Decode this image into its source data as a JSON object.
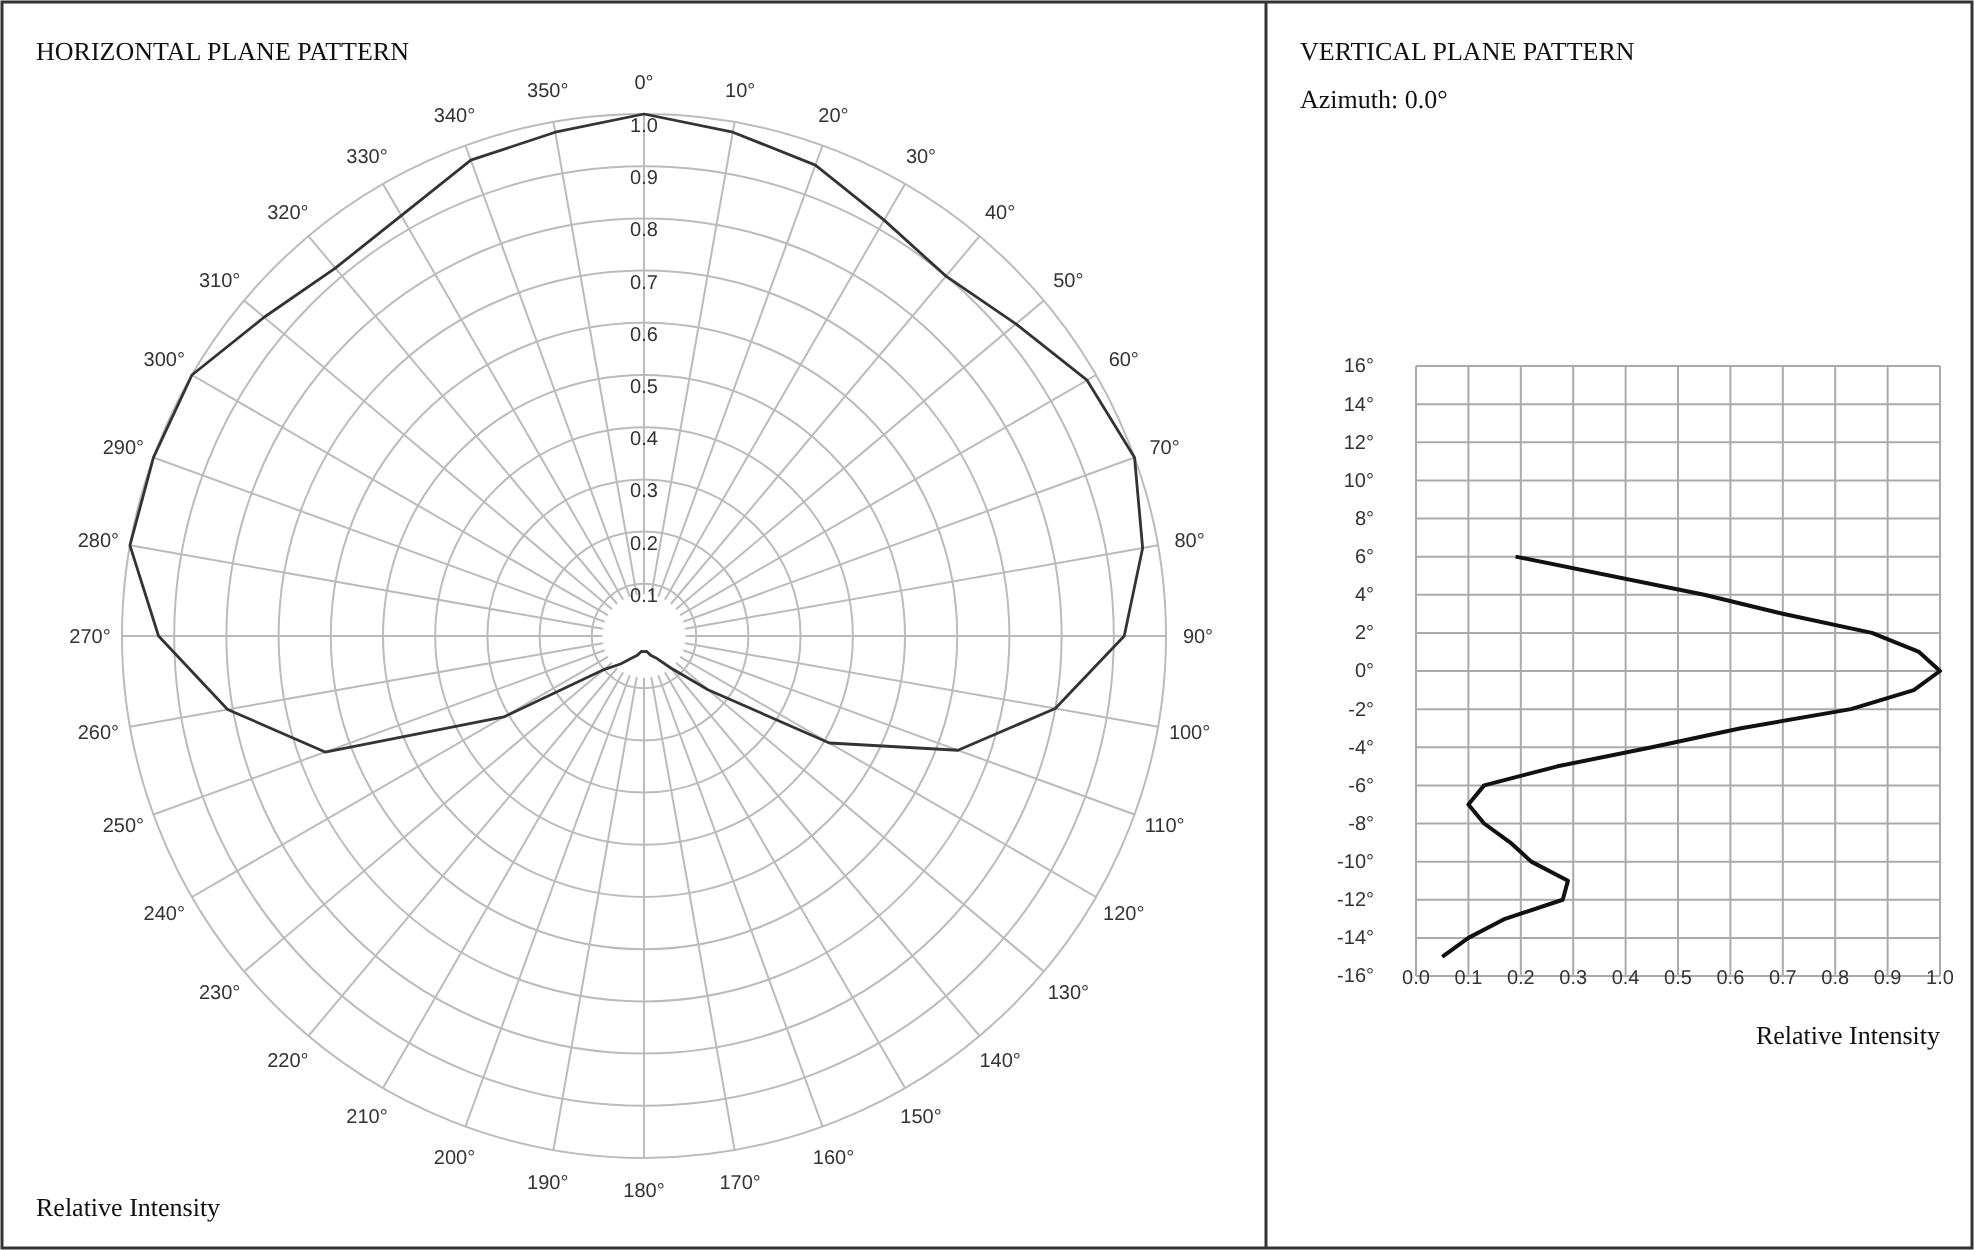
{
  "chart_data": [
    {
      "type": "radar",
      "title": "HORIZONTAL PLANE PATTERN",
      "annotations": [
        "Relative Intensity"
      ],
      "categories": [
        "0°",
        "10°",
        "20°",
        "30°",
        "40°",
        "50°",
        "60°",
        "70°",
        "80°",
        "90°",
        "100°",
        "110°",
        "120°",
        "130°",
        "140°",
        "150°",
        "160°",
        "170°",
        "180°",
        "190°",
        "200°",
        "210°",
        "220°",
        "230°",
        "240°",
        "250°",
        "260°",
        "270°",
        "280°",
        "290°",
        "300°",
        "310°",
        "320°",
        "330°",
        "340°",
        "350°"
      ],
      "series": [
        {
          "color": "#333333",
          "values": [
            1.0,
            0.98,
            0.96,
            0.92,
            0.9,
            0.93,
            0.98,
            1.0,
            0.97,
            0.92,
            0.8,
            0.64,
            0.41,
            0.16,
            0.08,
            0.05,
            0.04,
            0.03,
            0.03,
            0.03,
            0.04,
            0.05,
            0.07,
            0.1,
            0.31,
            0.65,
            0.81,
            0.93,
            1.0,
            1.0,
            1.0,
            0.95,
            0.92,
            0.93,
            0.97,
            0.98
          ]
        }
      ],
      "ylim": [
        0,
        1
      ],
      "yticks": [
        {
          "value": 0.1,
          "label": "0.1"
        },
        {
          "value": 0.2,
          "label": "0.2"
        },
        {
          "value": 0.3,
          "label": "0.3"
        },
        {
          "value": 0.4,
          "label": "0.4"
        },
        {
          "value": 0.5,
          "label": "0.5"
        },
        {
          "value": 0.6,
          "label": "0.6"
        },
        {
          "value": 0.7,
          "label": "0.7"
        },
        {
          "value": 0.8,
          "label": "0.8"
        },
        {
          "value": 0.9,
          "label": "0.9"
        },
        {
          "value": 1.0,
          "label": "1.0"
        }
      ],
      "grid": true
    },
    {
      "type": "line",
      "title": "VERTICAL PLANE PATTERN",
      "subtitle": "Azimuth: 0.0°",
      "xlabel": "Relative Intensity",
      "series": [
        {
          "color": "#111111",
          "x": [
            0.19,
            0.55,
            0.7,
            0.87,
            0.96,
            1.0,
            0.95,
            0.83,
            0.62,
            0.45,
            0.27,
            0.13,
            0.1,
            0.13,
            0.18,
            0.22,
            0.29,
            0.28,
            0.17,
            0.1,
            0.05
          ],
          "values": [
            6,
            4,
            3,
            2,
            1,
            0,
            -1,
            -2,
            -3,
            -4,
            -5,
            -6,
            -7,
            -8,
            -9,
            -10,
            -11,
            -12,
            -13,
            -14,
            -15
          ]
        }
      ],
      "xlim": [
        0,
        1
      ],
      "xticks": [
        {
          "value": 0,
          "label": "0.0"
        },
        {
          "value": 0.1,
          "label": "0.1"
        },
        {
          "value": 0.2,
          "label": "0.2"
        },
        {
          "value": 0.3,
          "label": "0.3"
        },
        {
          "value": 0.4,
          "label": "0.4"
        },
        {
          "value": 0.5,
          "label": "0.5"
        },
        {
          "value": 0.6,
          "label": "0.6"
        },
        {
          "value": 0.7,
          "label": "0.7"
        },
        {
          "value": 0.8,
          "label": "0.8"
        },
        {
          "value": 0.9,
          "label": "0.9"
        },
        {
          "value": 1,
          "label": "1.0"
        }
      ],
      "ylim": [
        -16,
        16
      ],
      "yticks": [
        {
          "value": -16,
          "label": "-16°"
        },
        {
          "value": -14,
          "label": "-14°"
        },
        {
          "value": -12,
          "label": "-12°"
        },
        {
          "value": -10,
          "label": "-10°"
        },
        {
          "value": -8,
          "label": "-8°"
        },
        {
          "value": -6,
          "label": "-6°"
        },
        {
          "value": -4,
          "label": "-4°"
        },
        {
          "value": -2,
          "label": "-2°"
        },
        {
          "value": 0,
          "label": "0°"
        },
        {
          "value": 2,
          "label": "2°"
        },
        {
          "value": 4,
          "label": "4°"
        },
        {
          "value": 6,
          "label": "6°"
        },
        {
          "value": 8,
          "label": "8°"
        },
        {
          "value": 10,
          "label": "10°"
        },
        {
          "value": 12,
          "label": "12°"
        },
        {
          "value": 14,
          "label": "14°"
        },
        {
          "value": 16,
          "label": "16°"
        }
      ],
      "grid": true
    }
  ]
}
